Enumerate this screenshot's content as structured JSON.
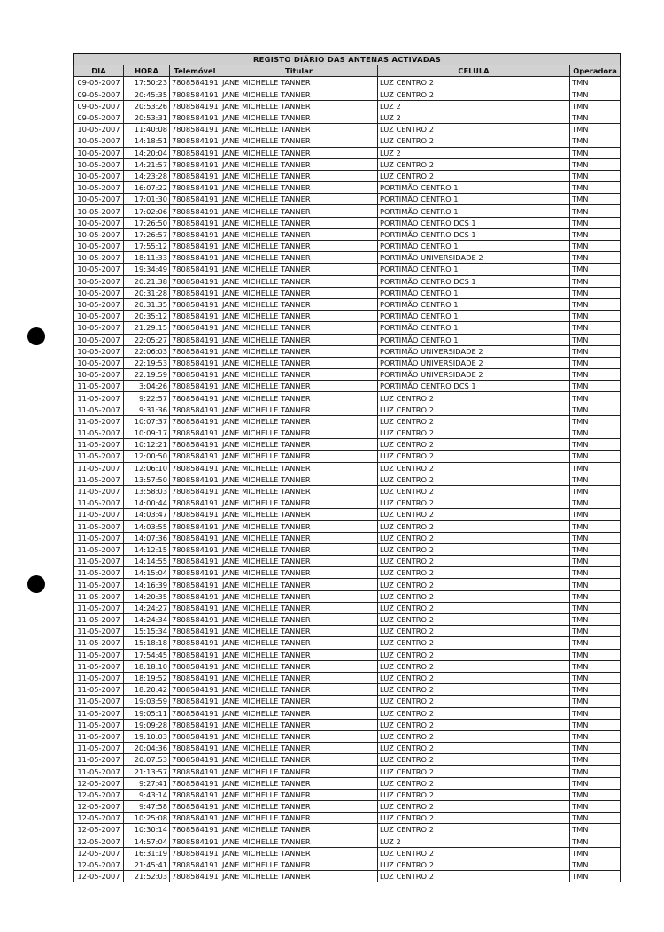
{
  "title": "REGISTO DIÁRIO DAS ANTENAS ACTIVADAS",
  "columns": [
    "DIA",
    "HORA",
    "Telemóvel",
    "Titular",
    "CELULA",
    "Operadora"
  ],
  "rows": [
    [
      "09-05-2007",
      "17:50:23",
      "7808584191",
      "JANE MICHELLE TANNER",
      "LUZ CENTRO 2",
      "TMN"
    ],
    [
      "09-05-2007",
      "20:45:35",
      "7808584191",
      "JANE MICHELLE TANNER",
      "LUZ CENTRO 2",
      "TMN"
    ],
    [
      "09-05-2007",
      "20:53:26",
      "7808584191",
      "JANE MICHELLE TANNER",
      "LUZ 2",
      "TMN"
    ],
    [
      "09-05-2007",
      "20:53:31",
      "7808584191",
      "JANE MICHELLE TANNER",
      "LUZ 2",
      "TMN"
    ],
    [
      "10-05-2007",
      "11:40:08",
      "7808584191",
      "JANE MICHELLE TANNER",
      "LUZ CENTRO 2",
      "TMN"
    ],
    [
      "10-05-2007",
      "14:18:51",
      "7808584191",
      "JANE MICHELLE TANNER",
      "LUZ CENTRO 2",
      "TMN"
    ],
    [
      "10-05-2007",
      "14:20:04",
      "7808584191",
      "JANE MICHELLE TANNER",
      "LUZ 2",
      "TMN"
    ],
    [
      "10-05-2007",
      "14:21:57",
      "7808584191",
      "JANE MICHELLE TANNER",
      "LUZ CENTRO 2",
      "TMN"
    ],
    [
      "10-05-2007",
      "14:23:28",
      "7808584191",
      "JANE MICHELLE TANNER",
      "LUZ CENTRO 2",
      "TMN"
    ],
    [
      "10-05-2007",
      "16:07:22",
      "7808584191",
      "JANE MICHELLE TANNER",
      "PORTIMÃO CENTRO 1",
      "TMN"
    ],
    [
      "10-05-2007",
      "17:01:30",
      "7808584191",
      "JANE MICHELLE TANNER",
      "PORTIMÃO CENTRO 1",
      "TMN"
    ],
    [
      "10-05-2007",
      "17:02:06",
      "7808584191",
      "JANE MICHELLE TANNER",
      "PORTIMÃO CENTRO 1",
      "TMN"
    ],
    [
      "10-05-2007",
      "17:26:50",
      "7808584191",
      "JANE MICHELLE TANNER",
      "PORTIMÃO CENTRO DCS 1",
      "TMN"
    ],
    [
      "10-05-2007",
      "17:26:57",
      "7808584191",
      "JANE MICHELLE TANNER",
      "PORTIMÃO CENTRO DCS 1",
      "TMN"
    ],
    [
      "10-05-2007",
      "17:55:12",
      "7808584191",
      "JANE MICHELLE TANNER",
      "PORTIMÃO CENTRO 1",
      "TMN"
    ],
    [
      "10-05-2007",
      "18:11:33",
      "7808584191",
      "JANE MICHELLE TANNER",
      "PORTIMÃO UNIVERSIDADE 2",
      "TMN"
    ],
    [
      "10-05-2007",
      "19:34:49",
      "7808584191",
      "JANE MICHELLE TANNER",
      "PORTIMÃO CENTRO 1",
      "TMN"
    ],
    [
      "10-05-2007",
      "20:21:38",
      "7808584191",
      "JANE MICHELLE TANNER",
      "PORTIMÃO CENTRO DCS 1",
      "TMN"
    ],
    [
      "10-05-2007",
      "20:31:28",
      "7808584191",
      "JANE MICHELLE TANNER",
      "PORTIMÃO CENTRO 1",
      "TMN"
    ],
    [
      "10-05-2007",
      "20:31:35",
      "7808584191",
      "JANE MICHELLE TANNER",
      "PORTIMÃO CENTRO 1",
      "TMN"
    ],
    [
      "10-05-2007",
      "20:35:12",
      "7808584191",
      "JANE MICHELLE TANNER",
      "PORTIMÃO CENTRO 1",
      "TMN"
    ],
    [
      "10-05-2007",
      "21:29:15",
      "7808584191",
      "JANE MICHELLE TANNER",
      "PORTIMÃO CENTRO 1",
      "TMN"
    ],
    [
      "10-05-2007",
      "22:05:27",
      "7808584191",
      "JANE MICHELLE TANNER",
      "PORTIMÃO CENTRO 1",
      "TMN"
    ],
    [
      "10-05-2007",
      "22:06:03",
      "7808584191",
      "JANE MICHELLE TANNER",
      "PORTIMÃO UNIVERSIDADE 2",
      "TMN"
    ],
    [
      "10-05-2007",
      "22:19:53",
      "7808584191",
      "JANE MICHELLE TANNER",
      "PORTIMÃO UNIVERSIDADE 2",
      "TMN"
    ],
    [
      "10-05-2007",
      "22:19:59",
      "7808584191",
      "JANE MICHELLE TANNER",
      "PORTIMÃO UNIVERSIDADE 2",
      "TMN"
    ],
    [
      "11-05-2007",
      "3:04:26",
      "7808584191",
      "JANE MICHELLE TANNER",
      "PORTIMÃO CENTRO DCS 1",
      "TMN"
    ],
    [
      "11-05-2007",
      "9:22:57",
      "7808584191",
      "JANE MICHELLE TANNER",
      "LUZ CENTRO 2",
      "TMN"
    ],
    [
      "11-05-2007",
      "9:31:36",
      "7808584191",
      "JANE MICHELLE TANNER",
      "LUZ CENTRO 2",
      "TMN"
    ],
    [
      "11-05-2007",
      "10:07:37",
      "7808584191",
      "JANE MICHELLE TANNER",
      "LUZ CENTRO 2",
      "TMN"
    ],
    [
      "11-05-2007",
      "10:09:17",
      "7808584191",
      "JANE MICHELLE TANNER",
      "LUZ CENTRO 2",
      "TMN"
    ],
    [
      "11-05-2007",
      "10:12:21",
      "7808584191",
      "JANE MICHELLE TANNER",
      "LUZ CENTRO 2",
      "TMN"
    ],
    [
      "11-05-2007",
      "12:00:50",
      "7808584191",
      "JANE MICHELLE TANNER",
      "LUZ CENTRO 2",
      "TMN"
    ],
    [
      "11-05-2007",
      "12:06:10",
      "7808584191",
      "JANE MICHELLE TANNER",
      "LUZ CENTRO 2",
      "TMN"
    ],
    [
      "11-05-2007",
      "13:57:50",
      "7808584191",
      "JANE MICHELLE TANNER",
      "LUZ CENTRO 2",
      "TMN"
    ],
    [
      "11-05-2007",
      "13:58:03",
      "7808584191",
      "JANE MICHELLE TANNER",
      "LUZ CENTRO 2",
      "TMN"
    ],
    [
      "11-05-2007",
      "14:00:44",
      "7808584191",
      "JANE MICHELLE TANNER",
      "LUZ CENTRO 2",
      "TMN"
    ],
    [
      "11-05-2007",
      "14:03:47",
      "7808584191",
      "JANE MICHELLE TANNER",
      "LUZ CENTRO 2",
      "TMN"
    ],
    [
      "11-05-2007",
      "14:03:55",
      "7808584191",
      "JANE MICHELLE TANNER",
      "LUZ CENTRO 2",
      "TMN"
    ],
    [
      "11-05-2007",
      "14:07:36",
      "7808584191",
      "JANE MICHELLE TANNER",
      "LUZ CENTRO 2",
      "TMN"
    ],
    [
      "11-05-2007",
      "14:12:15",
      "7808584191",
      "JANE MICHELLE TANNER",
      "LUZ CENTRO 2",
      "TMN"
    ],
    [
      "11-05-2007",
      "14:14:55",
      "7808584191",
      "JANE MICHELLE TANNER",
      "LUZ CENTRO 2",
      "TMN"
    ],
    [
      "11-05-2007",
      "14:15:04",
      "7808584191",
      "JANE MICHELLE TANNER",
      "LUZ CENTRO 2",
      "TMN"
    ],
    [
      "11-05-2007",
      "14:16:39",
      "7808584191",
      "JANE MICHELLE TANNER",
      "LUZ CENTRO 2",
      "TMN"
    ],
    [
      "11-05-2007",
      "14:20:35",
      "7808584191",
      "JANE MICHELLE TANNER",
      "LUZ CENTRO 2",
      "TMN"
    ],
    [
      "11-05-2007",
      "14:24:27",
      "7808584191",
      "JANE MICHELLE TANNER",
      "LUZ CENTRO 2",
      "TMN"
    ],
    [
      "11-05-2007",
      "14:24:34",
      "7808584191",
      "JANE MICHELLE TANNER",
      "LUZ CENTRO 2",
      "TMN"
    ],
    [
      "11-05-2007",
      "15:15:34",
      "7808584191",
      "JANE MICHELLE TANNER",
      "LUZ CENTRO 2",
      "TMN"
    ],
    [
      "11-05-2007",
      "15:18:18",
      "7808584191",
      "JANE MICHELLE TANNER",
      "LUZ CENTRO 2",
      "TMN"
    ],
    [
      "11-05-2007",
      "17:54:45",
      "7808584191",
      "JANE MICHELLE TANNER",
      "LUZ CENTRO 2",
      "TMN"
    ],
    [
      "11-05-2007",
      "18:18:10",
      "7808584191",
      "JANE MICHELLE TANNER",
      "LUZ CENTRO 2",
      "TMN"
    ],
    [
      "11-05-2007",
      "18:19:52",
      "7808584191",
      "JANE MICHELLE TANNER",
      "LUZ CENTRO 2",
      "TMN"
    ],
    [
      "11-05-2007",
      "18:20:42",
      "7808584191",
      "JANE MICHELLE TANNER",
      "LUZ CENTRO 2",
      "TMN"
    ],
    [
      "11-05-2007",
      "19:03:59",
      "7808584191",
      "JANE MICHELLE TANNER",
      "LUZ CENTRO 2",
      "TMN"
    ],
    [
      "11-05-2007",
      "19:05:11",
      "7808584191",
      "JANE MICHELLE TANNER",
      "LUZ CENTRO 2",
      "TMN"
    ],
    [
      "11-05-2007",
      "19:09:28",
      "7808584191",
      "JANE MICHELLE TANNER",
      "LUZ CENTRO 2",
      "TMN"
    ],
    [
      "11-05-2007",
      "19:10:03",
      "7808584191",
      "JANE MICHELLE TANNER",
      "LUZ CENTRO 2",
      "TMN"
    ],
    [
      "11-05-2007",
      "20:04:36",
      "7808584191",
      "JANE MICHELLE TANNER",
      "LUZ CENTRO 2",
      "TMN"
    ],
    [
      "11-05-2007",
      "20:07:53",
      "7808584191",
      "JANE MICHELLE TANNER",
      "LUZ CENTRO 2",
      "TMN"
    ],
    [
      "11-05-2007",
      "21:13:57",
      "7808584191",
      "JANE MICHELLE TANNER",
      "LUZ CENTRO 2",
      "TMN"
    ],
    [
      "12-05-2007",
      "9:27:41",
      "7808584191",
      "JANE MICHELLE TANNER",
      "LUZ CENTRO 2",
      "TMN"
    ],
    [
      "12-05-2007",
      "9:43:14",
      "7808584191",
      "JANE MICHELLE TANNER",
      "LUZ CENTRO 2",
      "TMN"
    ],
    [
      "12-05-2007",
      "9:47:58",
      "7808584191",
      "JANE MICHELLE TANNER",
      "LUZ CENTRO 2",
      "TMN"
    ],
    [
      "12-05-2007",
      "10:25:08",
      "7808584191",
      "JANE MICHELLE TANNER",
      "LUZ CENTRO 2",
      "TMN"
    ],
    [
      "12-05-2007",
      "10:30:14",
      "7808584191",
      "JANE MICHELLE TANNER",
      "LUZ CENTRO 2",
      "TMN"
    ],
    [
      "12-05-2007",
      "14:57:04",
      "7808584191",
      "JANE MICHELLE TANNER",
      "LUZ 2",
      "TMN"
    ],
    [
      "12-05-2007",
      "16:31:19",
      "7808584191",
      "JANE MICHELLE TANNER",
      "LUZ CENTRO 2",
      "TMN"
    ],
    [
      "12-05-2007",
      "21:45:41",
      "7808584191",
      "JANE MICHELLE TANNER",
      "LUZ CENTRO 2",
      "TMN"
    ],
    [
      "12-05-2007",
      "21:52:03",
      "7808584191",
      "JANE MICHELLE TANNER",
      "LUZ CENTRO 2",
      "TMN"
    ]
  ]
}
